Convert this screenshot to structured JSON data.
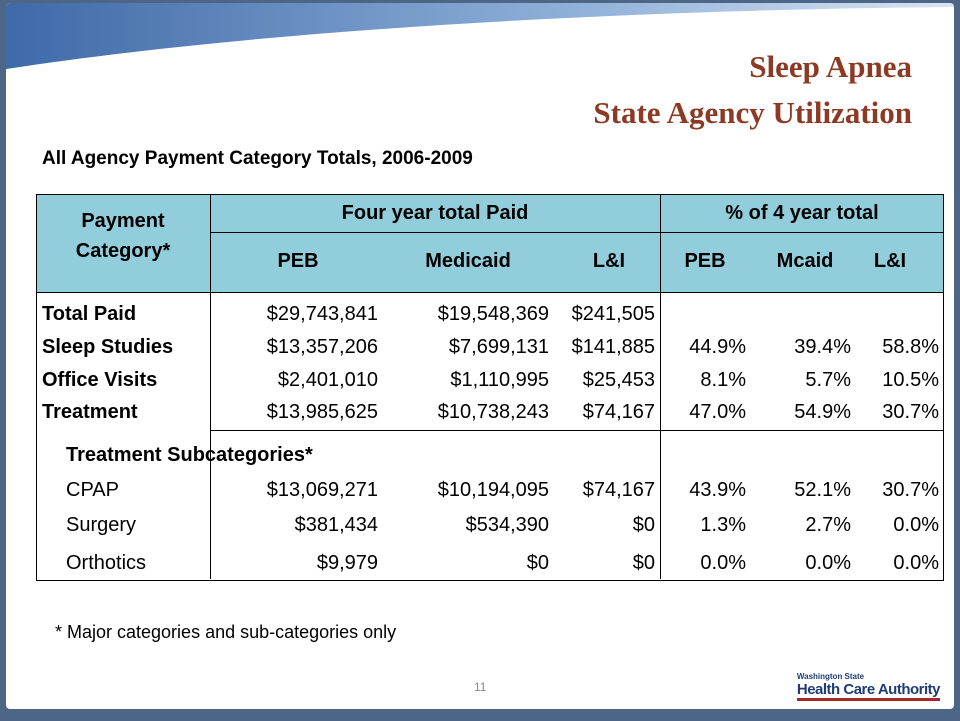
{
  "title": [
    "Sleep Apnea",
    "State Agency Utilization"
  ],
  "subtitle": "All Agency Payment Category Totals, 2006-2009",
  "table": {
    "header": {
      "first": "Payment Category*",
      "groups": [
        "Four year total Paid",
        "% of 4 year total"
      ],
      "columns": [
        "PEB",
        "Medicaid",
        "L&I",
        "PEB",
        "Mcaid",
        "L&I"
      ]
    },
    "main_rows": [
      {
        "label": "Total Paid",
        "values": [
          "$29,743,841",
          "$19,548,369",
          "$241,505"
        ]
      },
      {
        "label": "Sleep Studies",
        "values": [
          "$13,357,206",
          "$7,699,131",
          "$141,885",
          "44.9%",
          "39.4%",
          "58.8%"
        ]
      },
      {
        "label": "Office Visits",
        "values": [
          "$2,401,010",
          "$1,110,995",
          "$25,453",
          "8.1%",
          "5.7%",
          "10.5%"
        ]
      },
      {
        "label": "Treatment",
        "values": [
          "$13,985,625",
          "$10,738,243",
          "$74,167",
          "47.0%",
          "54.9%",
          "30.7%"
        ]
      }
    ],
    "sub_heading": "Treatment Subcategories*",
    "sub_rows": [
      {
        "label": "CPAP",
        "values": [
          "$13,069,271",
          "$10,194,095",
          "$74,167",
          "43.9%",
          "52.1%",
          "30.7%"
        ]
      },
      {
        "label": "Surgery",
        "values": [
          "$381,434",
          "$534,390",
          "$0",
          "1.3%",
          "2.7%",
          "0.0%"
        ]
      },
      {
        "label": "Orthotics",
        "values": [
          "$9,979",
          "$0",
          "$0",
          "0.0%",
          "0.0%",
          "0.0%"
        ]
      }
    ]
  },
  "footnote": "* Major categories and sub-categories only",
  "page_number": "11",
  "logo": {
    "top": "Washington State",
    "main": "Health Care Authority"
  }
}
